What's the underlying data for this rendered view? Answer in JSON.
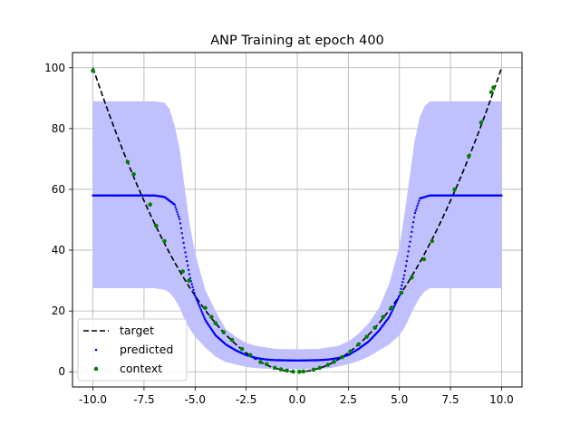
{
  "chart_data": {
    "type": "line",
    "title": "ANP Training at epoch 400",
    "xlabel": "",
    "ylabel": "",
    "xlim": [
      -11.0,
      11.0
    ],
    "ylim": [
      -5,
      105
    ],
    "x_ticks": [
      -10,
      -7.5,
      -5,
      -2.5,
      0,
      2.5,
      5,
      7.5,
      10
    ],
    "x_tick_labels": [
      "-10.0",
      "-7.5",
      "-5.0",
      "-2.5",
      "0.0",
      "2.5",
      "5.0",
      "7.5",
      "10.0"
    ],
    "y_ticks": [
      0,
      20,
      40,
      60,
      80,
      100
    ],
    "y_tick_labels": [
      "0",
      "20",
      "40",
      "60",
      "80",
      "100"
    ],
    "grid": true,
    "legend_position": "lower-left",
    "series": [
      {
        "name": "target",
        "style": "dashed-line",
        "color": "#000000",
        "function": "x^2",
        "x": [
          -10,
          -9,
          -8,
          -7,
          -6,
          -5,
          -4,
          -3,
          -2,
          -1,
          0,
          1,
          2,
          3,
          4,
          5,
          6,
          7,
          8,
          9,
          10
        ],
        "y": [
          100,
          81,
          64,
          49,
          36,
          25,
          16,
          9,
          4,
          1,
          0,
          1,
          4,
          9,
          16,
          25,
          36,
          49,
          64,
          81,
          100
        ]
      },
      {
        "name": "predicted",
        "style": "points",
        "color": "#0000ff",
        "x": [
          -10,
          -9,
          -8,
          -7,
          -6.5,
          -6,
          -5.75,
          -5.5,
          -5.25,
          -5,
          -4.5,
          -4,
          -3.5,
          -3,
          -2.5,
          -2,
          -1.5,
          -1,
          0,
          1,
          1.5,
          2,
          2.5,
          3,
          3.5,
          4,
          4.5,
          5,
          5.25,
          5.5,
          5.75,
          6,
          6.5,
          7,
          8,
          9,
          10
        ],
        "y": [
          58,
          58,
          58,
          58,
          57.5,
          55,
          50,
          40,
          31,
          25,
          17,
          12,
          9,
          7,
          5.5,
          4.5,
          4,
          3.8,
          3.7,
          3.8,
          4,
          4.5,
          5.5,
          7.5,
          10,
          13.5,
          18,
          25,
          32,
          42,
          52,
          57,
          58,
          58,
          58,
          58,
          58
        ]
      },
      {
        "name": "context",
        "style": "points",
        "color": "#008000",
        "x": [
          -10,
          -8.3,
          -8.0,
          -7.2,
          -6.9,
          -6.5,
          -5.6,
          -5.3,
          -4.5,
          -4.2,
          -4.0,
          -3.6,
          -3.2,
          -2.7,
          -2.3,
          -1.8,
          -1.5,
          -1.1,
          -0.8,
          -0.5,
          -0.2,
          0.1,
          0.3,
          0.8,
          1.1,
          1.5,
          1.8,
          2.2,
          2.6,
          3.0,
          3.4,
          3.8,
          4.2,
          4.6,
          5.1,
          5.6,
          6.2,
          6.6,
          7.7,
          8.4,
          9.0,
          9.5,
          9.6
        ],
        "y": [
          99,
          69,
          65,
          55,
          48,
          43,
          33,
          30,
          21,
          18,
          16,
          13,
          10.5,
          7.5,
          5.5,
          3.2,
          2.5,
          1.3,
          0.8,
          0.4,
          0.05,
          0.01,
          0.1,
          0.7,
          1.3,
          2.3,
          3.3,
          4.8,
          6.7,
          9,
          11.5,
          14.5,
          18,
          21,
          26,
          31,
          37,
          43,
          60,
          71,
          82,
          92,
          93.5
        ]
      }
    ],
    "uncertainty_band": {
      "color": "#c0c0ff",
      "x": [
        -10,
        -8,
        -7,
        -6.5,
        -6.25,
        -6,
        -5.75,
        -5.5,
        -5.25,
        -5,
        -4.5,
        -4,
        -3.5,
        -3,
        -2.5,
        -2,
        -1.5,
        -1,
        0,
        1,
        1.5,
        2,
        2.5,
        3,
        3.5,
        4,
        4.5,
        5,
        5.25,
        5.5,
        5.75,
        6,
        6.25,
        6.5,
        7,
        8,
        10
      ],
      "upper": [
        89,
        89,
        89,
        88.5,
        86.5,
        81,
        73,
        60,
        48,
        39,
        27,
        20,
        14,
        11.5,
        9.5,
        8.5,
        8,
        7.5,
        7.4,
        7.5,
        8,
        8.5,
        10,
        12.5,
        16,
        21,
        29,
        41,
        52,
        64,
        76,
        84,
        87.5,
        89,
        89,
        89,
        89
      ],
      "lower": [
        27.5,
        27.5,
        27.5,
        27,
        26,
        24,
        21,
        17,
        14,
        11.5,
        8,
        5,
        3.2,
        2.4,
        1.6,
        1.2,
        1,
        0.9,
        0.85,
        0.9,
        1.1,
        1.7,
        2.5,
        3.5,
        5,
        7,
        9,
        12,
        14.5,
        18,
        21.5,
        24.5,
        26.5,
        27.5,
        27.5,
        27.5,
        27.5
      ]
    }
  }
}
